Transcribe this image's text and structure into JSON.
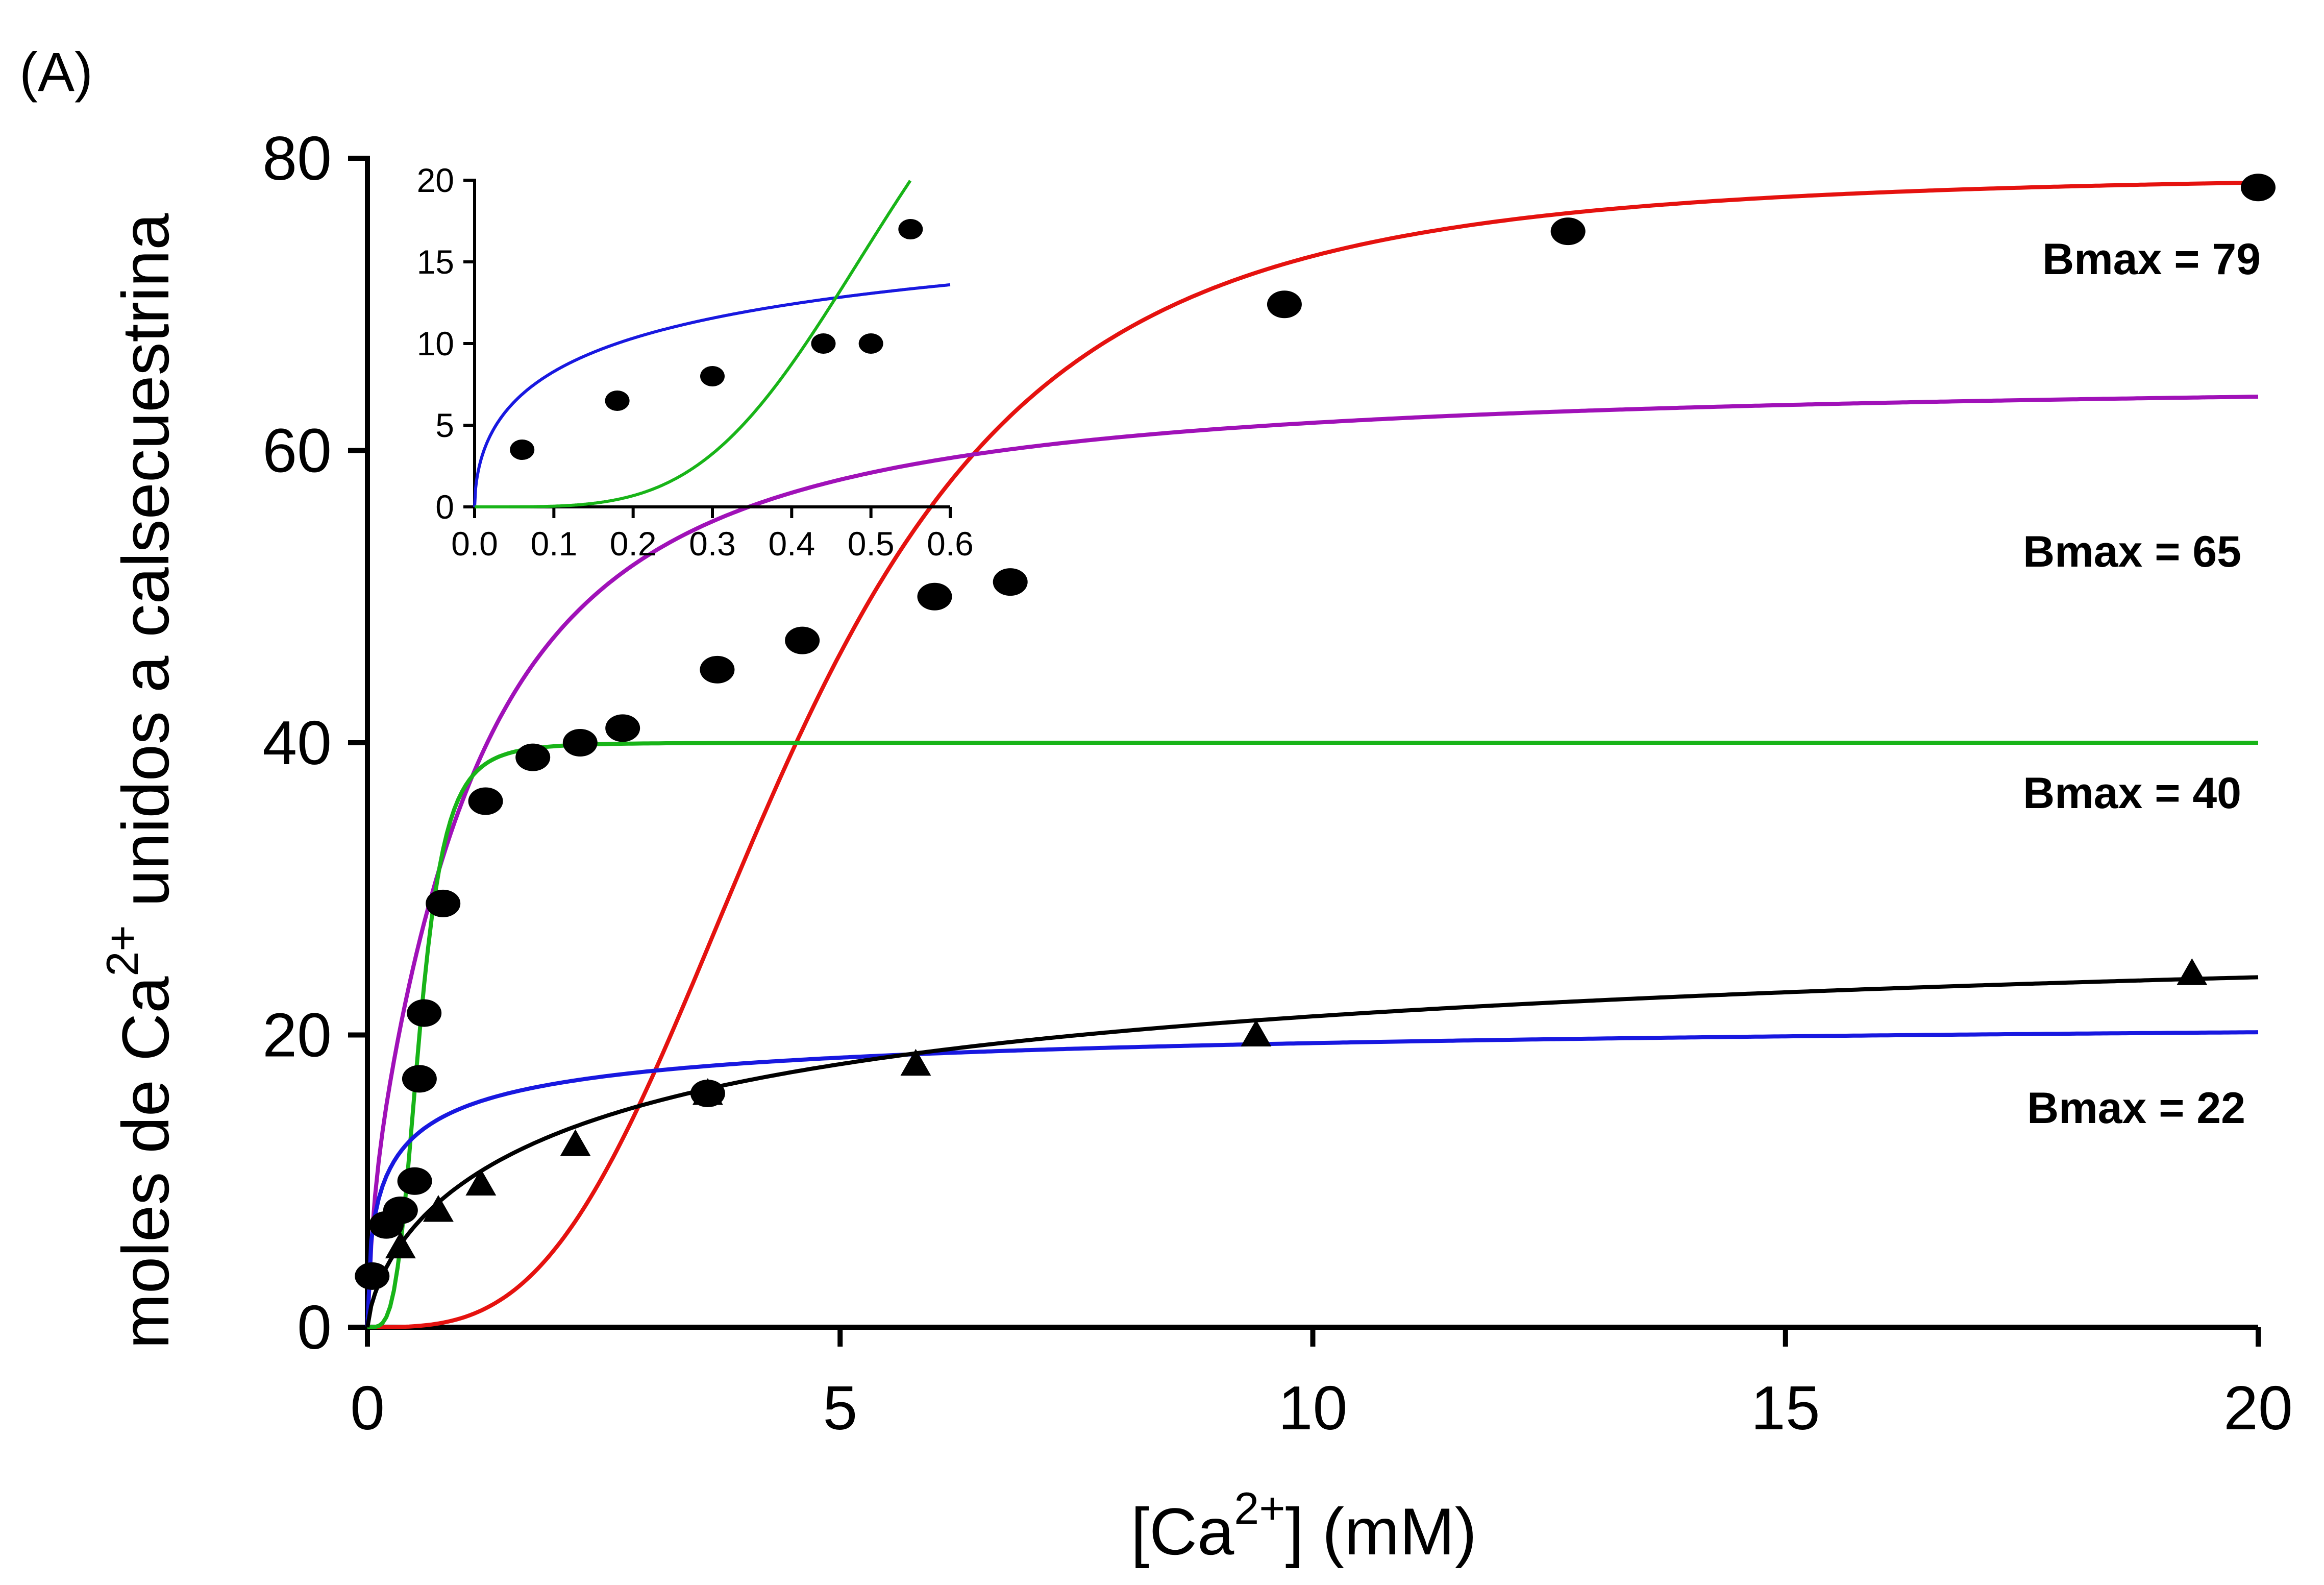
{
  "panel_label": "(A)",
  "chart_data": [
    {
      "type": "scatter",
      "panel": "main",
      "xlabel_parts": [
        "[Ca",
        "2+",
        "] (mM)"
      ],
      "ylabel_parts": [
        "moles de Ca",
        "2+",
        " unidos a calsecuestrina"
      ],
      "xlim": [
        0,
        20
      ],
      "ylim": [
        0,
        80
      ],
      "xticks": [
        0,
        5,
        10,
        15,
        20
      ],
      "yticks": [
        0,
        20,
        40,
        60,
        80
      ],
      "grid": false,
      "annotations": [
        "Bmax = 79",
        "Bmax = 65",
        "Bmax = 40",
        "Bmax = 22"
      ],
      "series": [
        {
          "color": "#e5120f",
          "curve": {
            "model": "hill",
            "bmax": 79,
            "kd": 4.5,
            "n": 3.2
          },
          "points": {
            "marker": "circle",
            "x": [
              3.6,
              4.6,
              6.0,
              9.7,
              12.7,
              20.0
            ],
            "y": [
              16,
              47,
              50,
              70,
              75,
              78
            ]
          }
        },
        {
          "color": "#a011b8",
          "curve": {
            "model": "two-site",
            "b1": 15,
            "k1": 0.08,
            "b2": 50,
            "k2": 1.2,
            "n2": 1.3
          },
          "points": {
            "marker": "circle",
            "x": [
              0.35,
              0.5,
              0.55,
              0.6,
              6.8
            ],
            "y": [
              8,
              10,
              17,
              21.5,
              51
            ]
          }
        },
        {
          "color": "#18b418",
          "curve": {
            "model": "hill",
            "bmax": 40,
            "kd": 0.55,
            "n": 4.0
          },
          "points": {
            "marker": "circle",
            "x": [
              0.8,
              1.25,
              1.75,
              2.25,
              2.7,
              3.7
            ],
            "y": [
              29,
              36,
              39,
              40,
              41,
              45
            ]
          }
        },
        {
          "color": "#1818e0",
          "curve": {
            "model": "hill",
            "bmax": 22,
            "kd": 0.25,
            "n": 0.55
          },
          "points": {
            "marker": "circle",
            "x": [
              0.05,
              0.2
            ],
            "y": [
              3.5,
              7
            ]
          }
        },
        {
          "color": "#000000",
          "curve": {
            "model": "hill",
            "bmax": 30,
            "kd": 2.8,
            "n": 0.7
          },
          "points": {
            "marker": "triangle",
            "x": [
              0.35,
              0.75,
              1.2,
              2.2,
              3.6,
              5.8,
              9.4,
              19.3
            ],
            "y": [
              5.5,
              8,
              9.8,
              12.5,
              16,
              18,
              20,
              24.2
            ]
          }
        }
      ]
    },
    {
      "type": "scatter",
      "panel": "inset",
      "xlim": [
        0,
        0.6
      ],
      "ylim": [
        0,
        20
      ],
      "xticks": [
        "0.0",
        "0.1",
        "0.2",
        "0.3",
        "0.4",
        "0.5",
        "0.6"
      ],
      "yticks": [
        0,
        5,
        10,
        15,
        20
      ],
      "grid": false,
      "series": [
        {
          "color": "#1818e0",
          "curve": {
            "model": "hill",
            "bmax": 22,
            "kd": 0.25,
            "n": 0.55
          },
          "points": {
            "marker": "circle",
            "x": [
              0.06,
              0.18,
              0.3,
              0.44,
              0.5
            ],
            "y": [
              3.5,
              6.5,
              8,
              10,
              10
            ]
          }
        },
        {
          "color": "#18b418",
          "curve": {
            "model": "hill",
            "bmax": 40,
            "kd": 0.55,
            "n": 4.0
          },
          "points": {
            "marker": "circle",
            "x": [
              0.55
            ],
            "y": [
              17
            ]
          }
        }
      ]
    }
  ]
}
